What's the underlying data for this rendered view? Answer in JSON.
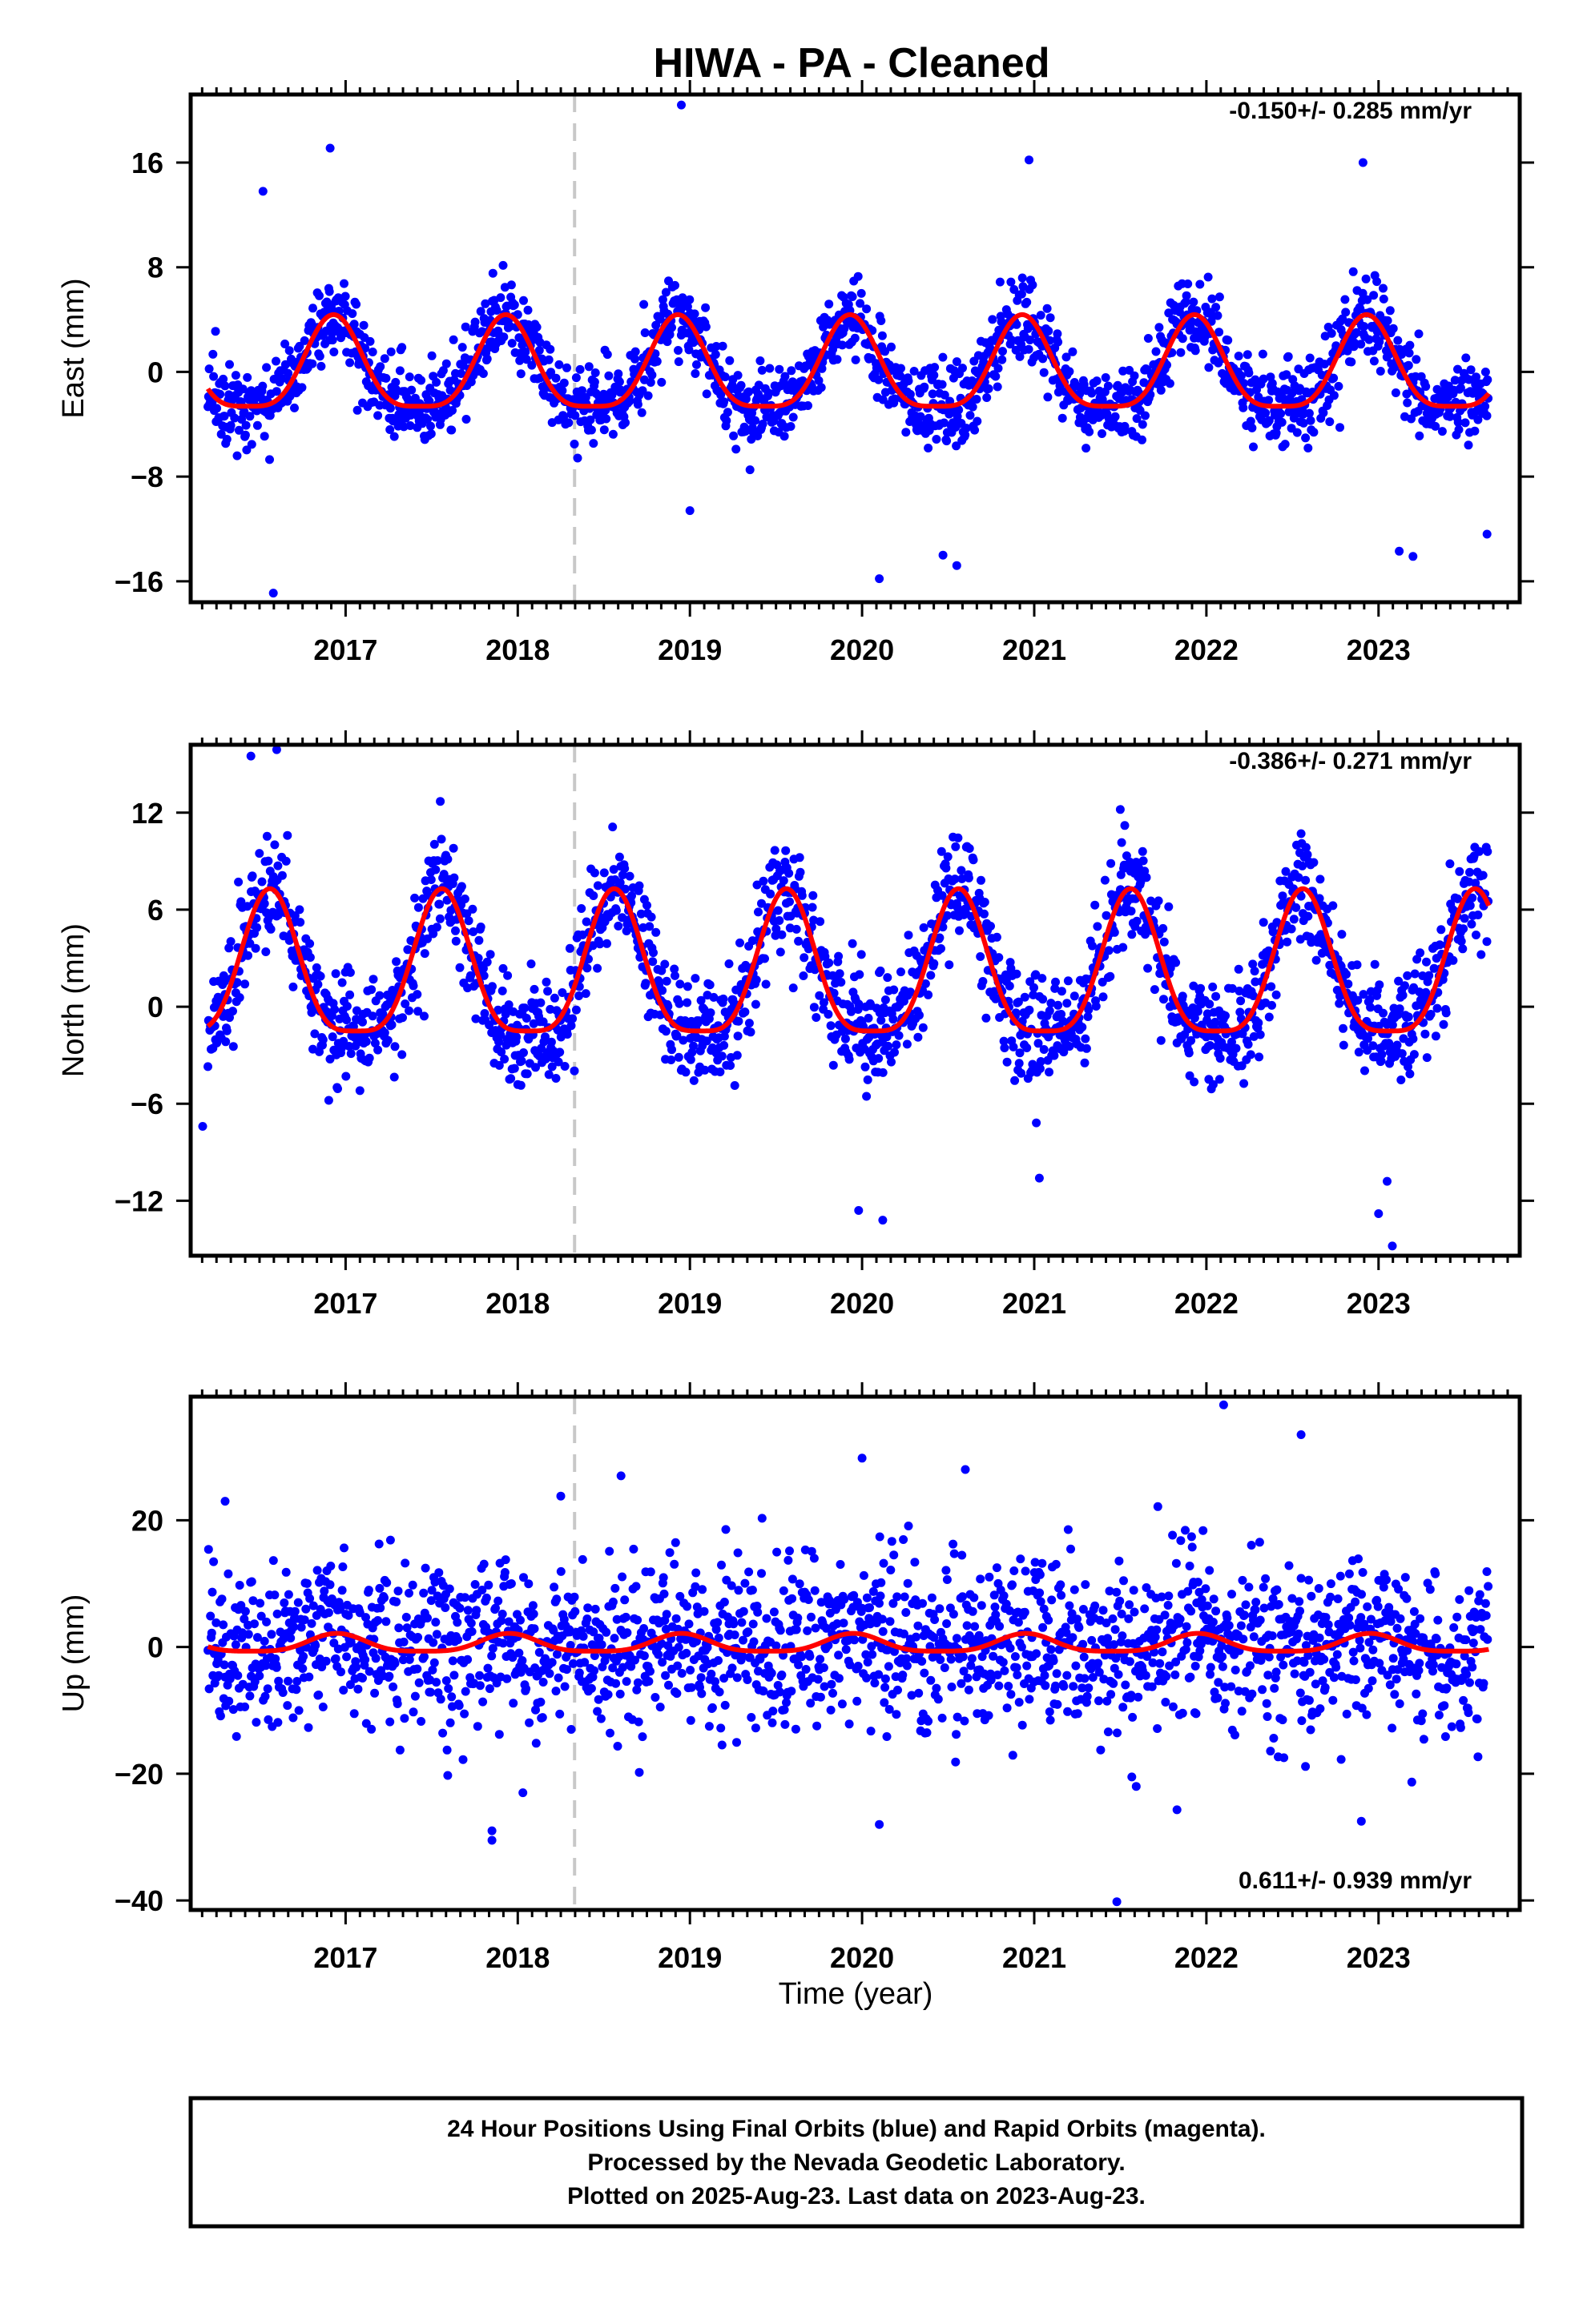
{
  "title": "HIWA  - PA - Cleaned",
  "xlabel": "Time (year)",
  "footer_lines": [
    "24 Hour Positions Using Final Orbits (blue) and Rapid Orbits (magenta).",
    "Processed by the Nevada Geodetic Laboratory.",
    "Plotted on 2025-Aug-23. Last data on 2023-Aug-23."
  ],
  "colors": {
    "points": "#0000ff",
    "model": "#ff0000",
    "break_line": "#c8c8c8",
    "frame": "#000000"
  },
  "chart_data": [
    {
      "type": "scatter",
      "name": "east",
      "ylabel": "East (mm)",
      "rate_text": "-0.150+/- 0.285 mm/yr",
      "xlim": [
        2016.1,
        2023.82
      ],
      "ylim": [
        -17.6,
        21.2
      ],
      "xticks": [
        2017,
        2018,
        2019,
        2020,
        2021,
        2022,
        2023
      ],
      "xtick_labels": [
        "2017",
        "2018",
        "2019",
        "2020",
        "2021",
        "2022",
        "2023"
      ],
      "yticks": [
        -16,
        -8,
        0,
        8,
        16
      ],
      "ytick_labels": [
        "−16",
        "−8",
        "0",
        "8",
        "16"
      ],
      "equipment_change_year": 2018.33,
      "model": {
        "offset": 0.0,
        "annual_amplitude": 3.5,
        "annual_phase_peak": 0.93,
        "noise_sd": 1.5
      },
      "outliers": [
        [
          2016.52,
          13.8
        ],
        [
          2016.58,
          -16.9
        ],
        [
          2016.91,
          17.1
        ],
        [
          2018.95,
          20.4
        ],
        [
          2019.0,
          -10.6
        ],
        [
          2020.1,
          -15.8
        ],
        [
          2020.47,
          -14.0
        ],
        [
          2020.55,
          -14.8
        ],
        [
          2020.97,
          16.2
        ],
        [
          2022.91,
          16.0
        ],
        [
          2023.12,
          -13.7
        ],
        [
          2023.2,
          -14.1
        ],
        [
          2023.63,
          -12.4
        ]
      ]
    },
    {
      "type": "scatter",
      "name": "north",
      "ylabel": "North (mm)",
      "rate_text": "-0.386+/- 0.271 mm/yr",
      "xlim": [
        2016.1,
        2023.82
      ],
      "ylim": [
        -15.4,
        16.2
      ],
      "xticks": [
        2017,
        2018,
        2019,
        2020,
        2021,
        2022,
        2023
      ],
      "xtick_labels": [
        "2017",
        "2018",
        "2019",
        "2020",
        "2021",
        "2022",
        "2023"
      ],
      "yticks": [
        -12,
        -6,
        0,
        6,
        12
      ],
      "ytick_labels": [
        "−12",
        "−6",
        "0",
        "6",
        "12"
      ],
      "equipment_change_year": 2018.33,
      "model": {
        "offset": 1.8,
        "annual_amplitude": 4.4,
        "annual_phase_peak": 0.56,
        "noise_sd": 1.7
      },
      "outliers": [
        [
          2016.45,
          15.5
        ],
        [
          2016.6,
          15.9
        ],
        [
          2016.17,
          -7.4
        ],
        [
          2019.98,
          -12.6
        ],
        [
          2020.12,
          -13.2
        ],
        [
          2021.03,
          -10.6
        ],
        [
          2023.0,
          -12.8
        ],
        [
          2023.08,
          -14.8
        ],
        [
          2023.05,
          -10.8
        ],
        [
          2021.5,
          12.2
        ],
        [
          2017.55,
          12.7
        ],
        [
          2022.55,
          10.7
        ]
      ]
    },
    {
      "type": "scatter",
      "name": "up",
      "ylabel": "Up (mm)",
      "rate_text": "0.611+/- 0.939 mm/yr",
      "xlim": [
        2016.1,
        2023.82
      ],
      "ylim": [
        -41.5,
        39.5
      ],
      "xticks": [
        2017,
        2018,
        2019,
        2020,
        2021,
        2022,
        2023
      ],
      "xtick_labels": [
        "2017",
        "2018",
        "2019",
        "2020",
        "2021",
        "2022",
        "2023"
      ],
      "yticks": [
        -40,
        -20,
        0,
        20
      ],
      "ytick_labels": [
        "−40",
        "−20",
        "0",
        "20"
      ],
      "equipment_change_year": 2018.33,
      "model": {
        "offset": 0.4,
        "annual_amplitude": 1.4,
        "annual_phase_peak": 0.95,
        "noise_sd": 6.5
      },
      "outliers": [
        [
          2017.85,
          -30.5
        ],
        [
          2017.85,
          -29.0
        ],
        [
          2020.0,
          29.8
        ],
        [
          2020.6,
          28.0
        ],
        [
          2022.1,
          38.2
        ],
        [
          2022.55,
          33.5
        ],
        [
          2021.48,
          -40.2
        ],
        [
          2020.1,
          -28.0
        ],
        [
          2022.9,
          -27.5
        ],
        [
          2018.25,
          23.8
        ],
        [
          2016.3,
          23.0
        ],
        [
          2018.6,
          27.0
        ]
      ]
    }
  ]
}
